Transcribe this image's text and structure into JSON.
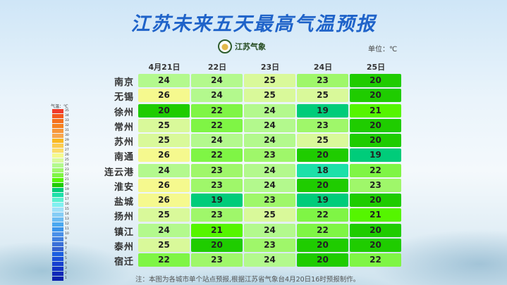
{
  "title": "江苏未来五天最高气温预报",
  "logo_text": "江苏气象",
  "unit": "单位：℃",
  "note": "注：本图为各城市单个站点预报,根据江苏省气象台4月20日16时预报制作。",
  "chart_data": {
    "type": "table",
    "columns": [
      "4月21日",
      "22日",
      "23日",
      "24日",
      "25日"
    ],
    "rows": [
      {
        "city": "南京",
        "values": [
          24,
          24,
          25,
          23,
          20
        ]
      },
      {
        "city": "无锡",
        "values": [
          26,
          24,
          25,
          25,
          20
        ]
      },
      {
        "city": "徐州",
        "values": [
          20,
          22,
          24,
          19,
          21
        ]
      },
      {
        "city": "常州",
        "values": [
          25,
          22,
          24,
          23,
          20
        ]
      },
      {
        "city": "苏州",
        "values": [
          25,
          24,
          24,
          25,
          20
        ]
      },
      {
        "city": "南通",
        "values": [
          26,
          22,
          23,
          20,
          19
        ]
      },
      {
        "city": "连云港",
        "values": [
          24,
          23,
          24,
          18,
          22
        ]
      },
      {
        "city": "淮安",
        "values": [
          26,
          23,
          24,
          20,
          23
        ]
      },
      {
        "city": "盐城",
        "values": [
          26,
          19,
          23,
          19,
          20
        ]
      },
      {
        "city": "扬州",
        "values": [
          25,
          23,
          25,
          22,
          21
        ]
      },
      {
        "city": "镇江",
        "values": [
          24,
          21,
          24,
          22,
          20
        ]
      },
      {
        "city": "泰州",
        "values": [
          25,
          20,
          23,
          20,
          20
        ]
      },
      {
        "city": "宿迁",
        "values": [
          22,
          23,
          24,
          20,
          22
        ]
      }
    ],
    "legend": {
      "title": "气温：℃",
      "labels": [
        "35",
        "34",
        "33",
        "32",
        "31",
        "30",
        "29",
        "28",
        "27",
        "26",
        "25",
        "24",
        "23",
        "22",
        "21",
        "20",
        "19",
        "18",
        "17",
        "16",
        "15",
        "14",
        "13",
        "12",
        "11",
        "10",
        "9",
        "8",
        "7",
        "6",
        "5",
        "4",
        "3",
        "2",
        "1"
      ],
      "colors": [
        "#f03a2a",
        "#f45a1e",
        "#f5701c",
        "#f68220",
        "#f79638",
        "#f8a64c",
        "#f9b820",
        "#fbcc50",
        "#fbdc6a",
        "#f5f98e",
        "#d9f99a",
        "#b3f98d",
        "#9ff76a",
        "#7ff545",
        "#55f500",
        "#1fcc00",
        "#00cc7a",
        "#1de0a8",
        "#5cf0d0",
        "#80f0f0",
        "#9fe0f8",
        "#86cdf5",
        "#6cbcf3",
        "#4aa8f0",
        "#3a94ec",
        "#4a90e8",
        "#3f7fe0",
        "#3a70d8",
        "#3460d0",
        "#1b5ee0",
        "#1a4ed8",
        "#163fd0",
        "#1232c4",
        "#1028b8",
        "#0c20ac"
      ]
    }
  }
}
